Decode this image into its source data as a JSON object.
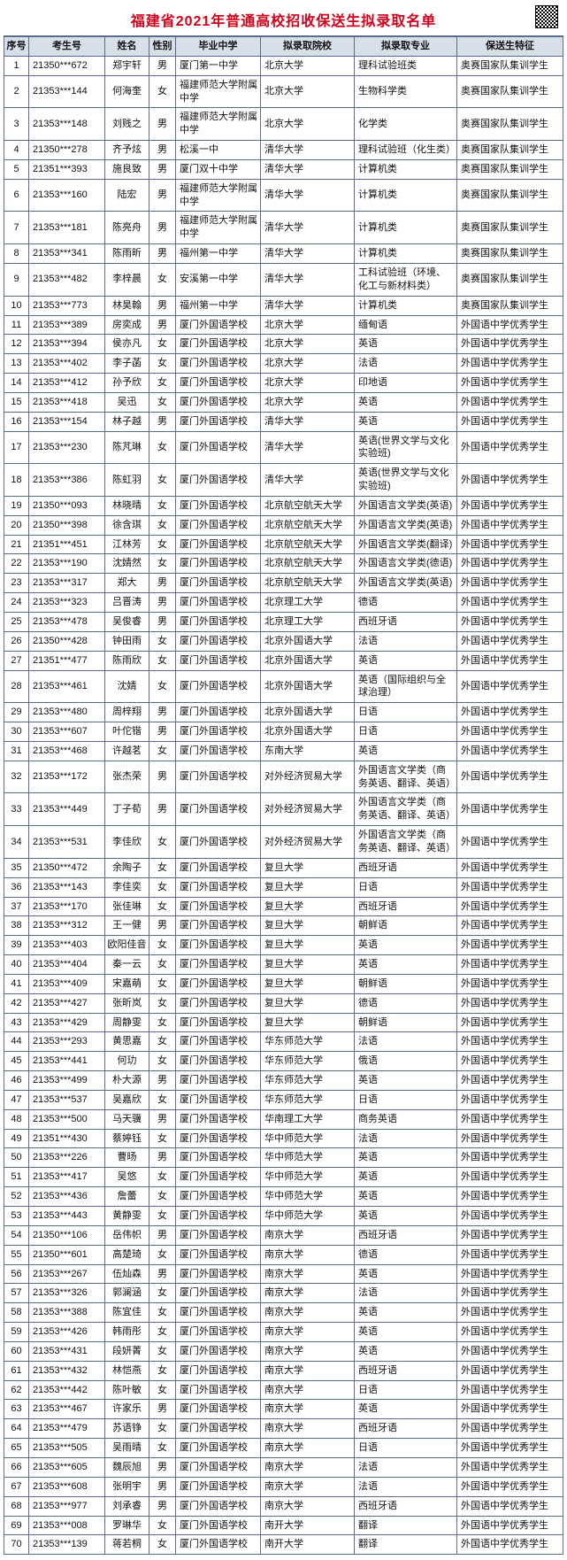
{
  "title": "福建省2021年普通高校招收保送生拟录取名单",
  "headers": [
    "序号",
    "考生号",
    "姓名",
    "性别",
    "毕业中学",
    "拟录取院校",
    "拟录取专业",
    "保送生特征"
  ],
  "rows": [
    [
      "1",
      "21350***672",
      "郑宇轩",
      "男",
      "厦门第一中学",
      "北京大学",
      "理科试验班类",
      "奥赛国家队集训学生"
    ],
    [
      "2",
      "21353***144",
      "何海奎",
      "女",
      "福建师范大学附属中学",
      "北京大学",
      "生物科学类",
      "奥赛国家队集训学生"
    ],
    [
      "3",
      "21353***148",
      "刘贱之",
      "男",
      "福建师范大学附属中学",
      "北京大学",
      "化学类",
      "奥赛国家队集训学生"
    ],
    [
      "4",
      "21350***278",
      "齐予炫",
      "男",
      "松溪一中",
      "清华大学",
      "理科试验班（化生类）",
      "奥赛国家队集训学生"
    ],
    [
      "5",
      "21351***393",
      "施良致",
      "男",
      "厦门双十中学",
      "清华大学",
      "计算机类",
      "奥赛国家队集训学生"
    ],
    [
      "6",
      "21353***160",
      "陆宏",
      "男",
      "福建师范大学附属中学",
      "清华大学",
      "计算机类",
      "奥赛国家队集训学生"
    ],
    [
      "7",
      "21353***181",
      "陈亮舟",
      "男",
      "福建师范大学附属中学",
      "清华大学",
      "计算机类",
      "奥赛国家队集训学生"
    ],
    [
      "8",
      "21353***341",
      "陈雨昕",
      "男",
      "福州第一中学",
      "清华大学",
      "计算机类",
      "奥赛国家队集训学生"
    ],
    [
      "9",
      "21353***482",
      "李梓晨",
      "女",
      "安溪第一中学",
      "清华大学",
      "工科试验班（环境、化工与新材料类）",
      "奥赛国家队集训学生"
    ],
    [
      "10",
      "21353***773",
      "林昊翰",
      "男",
      "福州第一中学",
      "清华大学",
      "计算机类",
      "奥赛国家队集训学生"
    ],
    [
      "11",
      "21353***389",
      "房奕成",
      "男",
      "厦门外国语学校",
      "北京大学",
      "缅甸语",
      "外国语中学优秀学生"
    ],
    [
      "12",
      "21353***394",
      "侯亦凡",
      "女",
      "厦门外国语学校",
      "北京大学",
      "英语",
      "外国语中学优秀学生"
    ],
    [
      "13",
      "21353***402",
      "李子菡",
      "女",
      "厦门外国语学校",
      "北京大学",
      "法语",
      "外国语中学优秀学生"
    ],
    [
      "14",
      "21353***412",
      "孙予欣",
      "女",
      "厦门外国语学校",
      "北京大学",
      "印地语",
      "外国语中学优秀学生"
    ],
    [
      "15",
      "21353***418",
      "吴迅",
      "女",
      "厦门外国语学校",
      "北京大学",
      "英语",
      "外国语中学优秀学生"
    ],
    [
      "16",
      "21353***154",
      "林子越",
      "男",
      "厦门外国语学校",
      "清华大学",
      "英语",
      "外国语中学优秀学生"
    ],
    [
      "17",
      "21353***230",
      "陈芃琳",
      "女",
      "厦门外国语学校",
      "清华大学",
      "英语(世界文学与文化实验班)",
      "外国语中学优秀学生"
    ],
    [
      "18",
      "21353***386",
      "陈虹羽",
      "女",
      "厦门外国语学校",
      "清华大学",
      "英语(世界文学与文化实验班)",
      "外国语中学优秀学生"
    ],
    [
      "19",
      "21350***093",
      "林晓晴",
      "女",
      "厦门外国语学校",
      "北京航空航天大学",
      "外国语言文学类(英语)",
      "外国语中学优秀学生"
    ],
    [
      "20",
      "21350***398",
      "徐含琪",
      "女",
      "厦门外国语学校",
      "北京航空航天大学",
      "外国语言文学类(英语)",
      "外国语中学优秀学生"
    ],
    [
      "21",
      "21351***451",
      "江林芳",
      "女",
      "厦门外国语学校",
      "北京航空航天大学",
      "外国语言文学类(翻译)",
      "外国语中学优秀学生"
    ],
    [
      "22",
      "21353***190",
      "沈婧然",
      "女",
      "厦门外国语学校",
      "北京航空航天大学",
      "外国语言文学类(德语)",
      "外国语中学优秀学生"
    ],
    [
      "23",
      "21353***317",
      "郑大",
      "男",
      "厦门外国语学校",
      "北京航空航天大学",
      "外国语言文学类(英语)",
      "外国语中学优秀学生"
    ],
    [
      "24",
      "21353***323",
      "吕晋涛",
      "男",
      "厦门外国语学校",
      "北京理工大学",
      "德语",
      "外国语中学优秀学生"
    ],
    [
      "25",
      "21353***478",
      "吴俊睿",
      "男",
      "厦门外国语学校",
      "北京理工大学",
      "西班牙语",
      "外国语中学优秀学生"
    ],
    [
      "26",
      "21350***428",
      "钟田雨",
      "女",
      "厦门外国语学校",
      "北京外国语大学",
      "法语",
      "外国语中学优秀学生"
    ],
    [
      "27",
      "21351***477",
      "陈雨欣",
      "女",
      "厦门外国语学校",
      "北京外国语大学",
      "英语",
      "外国语中学优秀学生"
    ],
    [
      "28",
      "21353***461",
      "沈婧",
      "女",
      "厦门外国语学校",
      "北京外国语大学",
      "英语（国际组织与全球治理）",
      "外国语中学优秀学生"
    ],
    [
      "29",
      "21353***480",
      "周梓翔",
      "男",
      "厦门外国语学校",
      "北京外国语大学",
      "日语",
      "外国语中学优秀学生"
    ],
    [
      "30",
      "21353***607",
      "叶佗锴",
      "男",
      "厦门外国语学校",
      "北京外国语大学",
      "日语",
      "外国语中学优秀学生"
    ],
    [
      "31",
      "21353***468",
      "许越茗",
      "女",
      "厦门外国语学校",
      "东南大学",
      "英语",
      "外国语中学优秀学生"
    ],
    [
      "32",
      "21353***172",
      "张杰荣",
      "男",
      "厦门外国语学校",
      "对外经济贸易大学",
      "外国语言文学类（商务英语、翻译、英语）",
      "外国语中学优秀学生"
    ],
    [
      "33",
      "21353***449",
      "丁子荀",
      "男",
      "厦门外国语学校",
      "对外经济贸易大学",
      "外国语言文学类（商务英语、翻译、英语）",
      "外国语中学优秀学生"
    ],
    [
      "34",
      "21353***531",
      "李佳欣",
      "女",
      "厦门外国语学校",
      "对外经济贸易大学",
      "外国语言文学类（商务英语、翻译、英语）",
      "外国语中学优秀学生"
    ],
    [
      "35",
      "21350***472",
      "余陶子",
      "女",
      "厦门外国语学校",
      "复旦大学",
      "西班牙语",
      "外国语中学优秀学生"
    ],
    [
      "36",
      "21353***143",
      "李佳奕",
      "女",
      "厦门外国语学校",
      "复旦大学",
      "日语",
      "外国语中学优秀学生"
    ],
    [
      "37",
      "21353***170",
      "张佳琳",
      "女",
      "厦门外国语学校",
      "复旦大学",
      "西班牙语",
      "外国语中学优秀学生"
    ],
    [
      "38",
      "21353***312",
      "王一健",
      "男",
      "厦门外国语学校",
      "复旦大学",
      "朝鲜语",
      "外国语中学优秀学生"
    ],
    [
      "39",
      "21353***403",
      "欧阳佳音",
      "女",
      "厦门外国语学校",
      "复旦大学",
      "英语",
      "外国语中学优秀学生"
    ],
    [
      "40",
      "21353***404",
      "秦一云",
      "女",
      "厦门外国语学校",
      "复旦大学",
      "英语",
      "外国语中学优秀学生"
    ],
    [
      "41",
      "21353***409",
      "宋嘉萌",
      "女",
      "厦门外国语学校",
      "复旦大学",
      "朝鲜语",
      "外国语中学优秀学生"
    ],
    [
      "42",
      "21353***427",
      "张昕岚",
      "女",
      "厦门外国语学校",
      "复旦大学",
      "德语",
      "外国语中学优秀学生"
    ],
    [
      "43",
      "21353***429",
      "周静雯",
      "女",
      "厦门外国语学校",
      "复旦大学",
      "朝鲜语",
      "外国语中学优秀学生"
    ],
    [
      "44",
      "21353***293",
      "黄思嘉",
      "女",
      "厦门外国语学校",
      "华东师范大学",
      "法语",
      "外国语中学优秀学生"
    ],
    [
      "45",
      "21353***441",
      "何玏",
      "女",
      "厦门外国语学校",
      "华东师范大学",
      "俄语",
      "外国语中学优秀学生"
    ],
    [
      "46",
      "21353***499",
      "朴大源",
      "男",
      "厦门外国语学校",
      "华东师范大学",
      "英语",
      "外国语中学优秀学生"
    ],
    [
      "47",
      "21353***537",
      "吴嘉欣",
      "女",
      "厦门外国语学校",
      "华东师范大学",
      "日语",
      "外国语中学优秀学生"
    ],
    [
      "48",
      "21353***500",
      "马天骥",
      "男",
      "厦门外国语学校",
      "华南理工大学",
      "商务英语",
      "外国语中学优秀学生"
    ],
    [
      "49",
      "21351***430",
      "蔡婷钰",
      "女",
      "厦门外国语学校",
      "华中师范大学",
      "法语",
      "外国语中学优秀学生"
    ],
    [
      "50",
      "21353***226",
      "曹旸",
      "男",
      "厦门外国语学校",
      "华中师范大学",
      "英语",
      "外国语中学优秀学生"
    ],
    [
      "51",
      "21353***417",
      "吴悠",
      "女",
      "厦门外国语学校",
      "华中师范大学",
      "英语",
      "外国语中学优秀学生"
    ],
    [
      "52",
      "21353***436",
      "詹蕾",
      "女",
      "厦门外国语学校",
      "华中师范大学",
      "英语",
      "外国语中学优秀学生"
    ],
    [
      "53",
      "21353***443",
      "黄静雯",
      "女",
      "厦门外国语学校",
      "华中师范大学",
      "英语",
      "外国语中学优秀学生"
    ],
    [
      "54",
      "21350***106",
      "岳伟帜",
      "男",
      "厦门外国语学校",
      "南京大学",
      "西班牙语",
      "外国语中学优秀学生"
    ],
    [
      "55",
      "21350***601",
      "高楚琦",
      "女",
      "厦门外国语学校",
      "南京大学",
      "德语",
      "外国语中学优秀学生"
    ],
    [
      "56",
      "21353***267",
      "伍灿森",
      "男",
      "厦门外国语学校",
      "南京大学",
      "英语",
      "外国语中学优秀学生"
    ],
    [
      "57",
      "21353***326",
      "郭澜涵",
      "女",
      "厦门外国语学校",
      "南京大学",
      "法语",
      "外国语中学优秀学生"
    ],
    [
      "58",
      "21353***388",
      "陈宜佳",
      "女",
      "厦门外国语学校",
      "南京大学",
      "英语",
      "外国语中学优秀学生"
    ],
    [
      "59",
      "21353***426",
      "韩雨彤",
      "女",
      "厦门外国语学校",
      "南京大学",
      "英语",
      "外国语中学优秀学生"
    ],
    [
      "60",
      "21353***431",
      "段妍菁",
      "女",
      "厦门外国语学校",
      "南京大学",
      "英语",
      "外国语中学优秀学生"
    ],
    [
      "61",
      "21353***432",
      "林恺燕",
      "女",
      "厦门外国语学校",
      "南京大学",
      "西班牙语",
      "外国语中学优秀学生"
    ],
    [
      "62",
      "21353***442",
      "陈叶敏",
      "女",
      "厦门外国语学校",
      "南京大学",
      "日语",
      "外国语中学优秀学生"
    ],
    [
      "63",
      "21353***467",
      "许家乐",
      "男",
      "厦门外国语学校",
      "南京大学",
      "英语",
      "外国语中学优秀学生"
    ],
    [
      "64",
      "21353***479",
      "苏语铮",
      "女",
      "厦门外国语学校",
      "南京大学",
      "西班牙语",
      "外国语中学优秀学生"
    ],
    [
      "65",
      "21353***505",
      "吴雨晴",
      "女",
      "厦门外国语学校",
      "南京大学",
      "日语",
      "外国语中学优秀学生"
    ],
    [
      "66",
      "21353***605",
      "魏辰旭",
      "男",
      "厦门外国语学校",
      "南京大学",
      "法语",
      "外国语中学优秀学生"
    ],
    [
      "67",
      "21353***608",
      "张明宇",
      "男",
      "厦门外国语学校",
      "南京大学",
      "法语",
      "外国语中学优秀学生"
    ],
    [
      "68",
      "21353***977",
      "刘承睿",
      "男",
      "厦门外国语学校",
      "南京大学",
      "西班牙语",
      "外国语中学优秀学生"
    ],
    [
      "69",
      "21353***008",
      "罗琳华",
      "女",
      "厦门外国语学校",
      "南开大学",
      "翻译",
      "外国语中学优秀学生"
    ],
    [
      "70",
      "21353***139",
      "蒋若桐",
      "女",
      "厦门外国语学校",
      "南开大学",
      "翻译",
      "外国语中学优秀学生"
    ]
  ]
}
